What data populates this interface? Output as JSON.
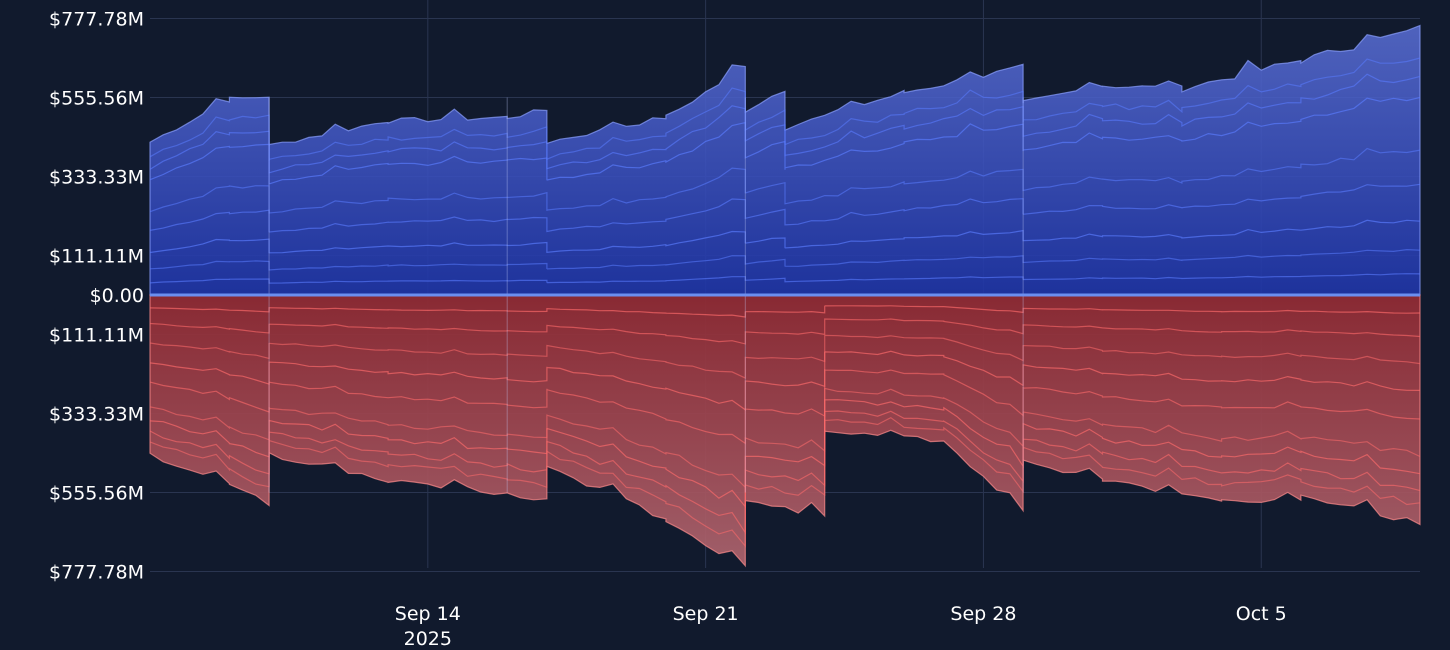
{
  "chart_data": {
    "type": "area",
    "x_range": [
      "2025-09-07",
      "2025-10-09"
    ],
    "y_range": [
      -830000000,
      830000000
    ],
    "y_ticks": [
      {
        "value": 777780000,
        "label": "$777.78M"
      },
      {
        "value": 555560000,
        "label": "$555.56M"
      },
      {
        "value": 333330000,
        "label": "$333.33M"
      },
      {
        "value": 111110000,
        "label": "$111.11M"
      },
      {
        "value": 0,
        "label": "$0.00"
      },
      {
        "value": -111110000,
        "label": "$111.11M"
      },
      {
        "value": -333330000,
        "label": "$333.33M"
      },
      {
        "value": -555560000,
        "label": "$555.56M"
      },
      {
        "value": -777780000,
        "label": "$777.78M"
      }
    ],
    "x_ticks": [
      {
        "date": "2025-09-14",
        "label": "Sep 14",
        "sublabel": "2025"
      },
      {
        "date": "2025-09-21",
        "label": "Sep 21",
        "sublabel": ""
      },
      {
        "date": "2025-09-28",
        "label": "Sep 28",
        "sublabel": ""
      },
      {
        "date": "2025-10-05",
        "label": "Oct 5",
        "sublabel": ""
      }
    ],
    "grid": true,
    "colors": {
      "positive_light": "#6678c8",
      "positive_dark": "#2a3f9e",
      "positive_line": "#5a7cff",
      "negative_light": "#a8606a",
      "negative_dark": "#8e2f38",
      "negative_line": "#ff6b6b",
      "zero_line": "#6b8ff0",
      "background": "#111a2d"
    },
    "regimes": [
      {
        "start": "2025-09-07",
        "end": "2025-09-10"
      },
      {
        "start": "2025-09-10",
        "end": "2025-09-16"
      },
      {
        "start": "2025-09-16",
        "end": "2025-09-22"
      },
      {
        "start": "2025-09-22",
        "end": "2025-09-29"
      },
      {
        "start": "2025-09-29",
        "end": "2025-10-09"
      }
    ],
    "positive_envelope": [
      {
        "date": "2025-09-07",
        "value": 430000000
      },
      {
        "date": "2025-09-09",
        "value": 550000000
      },
      {
        "date": "2025-09-10",
        "value": 560000000
      },
      {
        "date": "2025-09-10",
        "value": 420000000
      },
      {
        "date": "2025-09-13",
        "value": 490000000
      },
      {
        "date": "2025-09-16",
        "value": 500000000
      },
      {
        "date": "2025-09-17",
        "value": 520000000
      },
      {
        "date": "2025-09-17",
        "value": 430000000
      },
      {
        "date": "2025-09-20",
        "value": 500000000
      },
      {
        "date": "2025-09-22",
        "value": 640000000
      },
      {
        "date": "2025-09-22",
        "value": 520000000
      },
      {
        "date": "2025-09-23",
        "value": 580000000
      },
      {
        "date": "2025-09-23",
        "value": 470000000
      },
      {
        "date": "2025-09-26",
        "value": 570000000
      },
      {
        "date": "2025-09-29",
        "value": 640000000
      },
      {
        "date": "2025-09-29",
        "value": 540000000
      },
      {
        "date": "2025-10-01",
        "value": 590000000
      },
      {
        "date": "2025-10-03",
        "value": 580000000
      },
      {
        "date": "2025-10-06",
        "value": 660000000
      },
      {
        "date": "2025-10-09",
        "value": 750000000
      }
    ],
    "negative_envelope": [
      {
        "date": "2025-09-07",
        "value": -450000000
      },
      {
        "date": "2025-09-09",
        "value": -530000000
      },
      {
        "date": "2025-09-10",
        "value": -590000000
      },
      {
        "date": "2025-09-10",
        "value": -450000000
      },
      {
        "date": "2025-09-13",
        "value": -520000000
      },
      {
        "date": "2025-09-16",
        "value": -560000000
      },
      {
        "date": "2025-09-17",
        "value": -580000000
      },
      {
        "date": "2025-09-17",
        "value": -480000000
      },
      {
        "date": "2025-09-20",
        "value": -630000000
      },
      {
        "date": "2025-09-22",
        "value": -770000000
      },
      {
        "date": "2025-09-22",
        "value": -580000000
      },
      {
        "date": "2025-09-24",
        "value": -620000000
      },
      {
        "date": "2025-09-24",
        "value": -380000000
      },
      {
        "date": "2025-09-27",
        "value": -410000000
      },
      {
        "date": "2025-09-29",
        "value": -610000000
      },
      {
        "date": "2025-09-29",
        "value": -470000000
      },
      {
        "date": "2025-10-01",
        "value": -520000000
      },
      {
        "date": "2025-10-04",
        "value": -580000000
      },
      {
        "date": "2025-10-06",
        "value": -570000000
      },
      {
        "date": "2025-10-09",
        "value": -640000000
      }
    ],
    "positive_series_fractions": [
      0.9,
      0.83,
      0.75,
      0.55,
      0.42,
      0.28,
      0.17,
      0.08
    ],
    "negative_series_fractions": [
      0.92,
      0.86,
      0.78,
      0.7,
      0.55,
      0.42,
      0.3,
      0.18,
      0.08
    ]
  }
}
